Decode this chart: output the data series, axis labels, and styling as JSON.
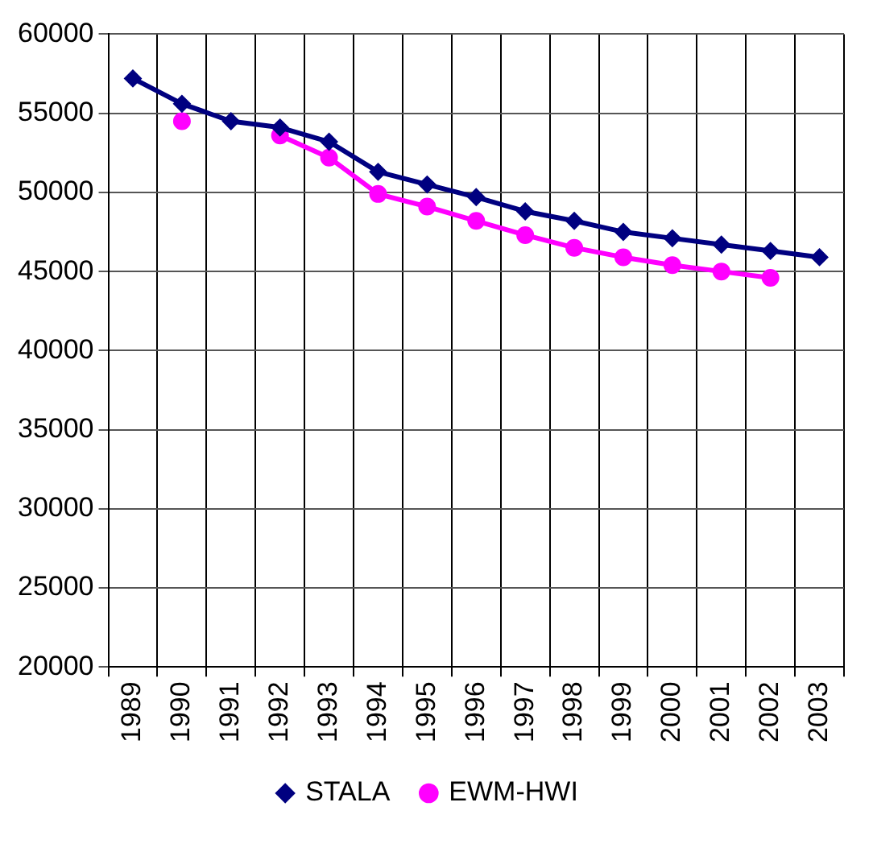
{
  "chart_data": {
    "type": "line",
    "categories": [
      "1989",
      "1990",
      "1991",
      "1992",
      "1993",
      "1994",
      "1995",
      "1996",
      "1997",
      "1998",
      "1999",
      "2000",
      "2001",
      "2002",
      "2003"
    ],
    "series": [
      {
        "name": "STALA",
        "color": "#000080",
        "marker": "diamond",
        "values": [
          57200,
          55600,
          54500,
          54100,
          53200,
          51300,
          50500,
          49700,
          48800,
          48200,
          47500,
          47100,
          46700,
          46300,
          45900
        ]
      },
      {
        "name": "EWM-HWI",
        "color": "#ff00ff",
        "marker": "circle",
        "values": [
          null,
          54500,
          null,
          53600,
          52200,
          49900,
          49100,
          48200,
          47300,
          46500,
          45900,
          45400,
          45000,
          44600,
          null
        ]
      }
    ],
    "ylim": [
      20000,
      60000
    ],
    "yticks": [
      20000,
      25000,
      30000,
      35000,
      40000,
      45000,
      50000,
      55000,
      60000
    ],
    "grid": true,
    "legend": "bottom"
  }
}
